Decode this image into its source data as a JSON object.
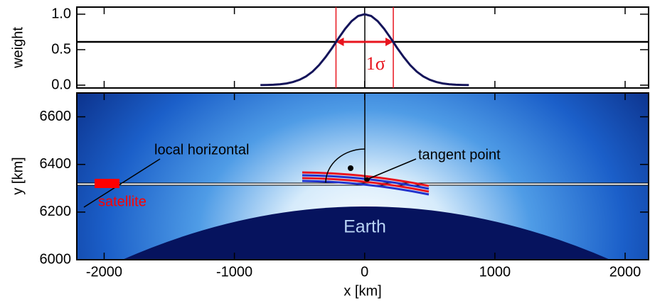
{
  "chart_data": [
    {
      "type": "line",
      "ylabel": "weight",
      "color": "#14145a",
      "x": [
        -800,
        -750,
        -700,
        -650,
        -600,
        -550,
        -500,
        -450,
        -400,
        -350,
        -300,
        -250,
        -200,
        -150,
        -100,
        -50,
        0,
        50,
        100,
        150,
        200,
        250,
        300,
        350,
        400,
        450,
        500,
        550,
        600,
        650,
        700,
        750,
        800
      ],
      "values": [
        0.001,
        0.003,
        0.006,
        0.013,
        0.024,
        0.044,
        0.076,
        0.123,
        0.191,
        0.282,
        0.395,
        0.524,
        0.662,
        0.793,
        0.902,
        0.975,
        1,
        0.975,
        0.902,
        0.793,
        0.662,
        0.524,
        0.395,
        0.282,
        0.191,
        0.123,
        0.076,
        0.044,
        0.024,
        0.013,
        0.006,
        0.003,
        0.001
      ],
      "hline": 0.61,
      "sigma": 220,
      "sigma_color": "#e8141e",
      "annotation": "1σ",
      "xlim": [
        -2210,
        2180
      ],
      "xticks": [
        -2000,
        -1000,
        0,
        1000,
        2000
      ],
      "ylim": [
        -0.04,
        1.1
      ],
      "yticks": [
        {
          "value": 0,
          "label": "0.0"
        },
        {
          "value": 0.5,
          "label": "0.5"
        },
        {
          "value": 1,
          "label": "1.0"
        }
      ]
    },
    {
      "type": "scene",
      "xlabel": "x [km]",
      "ylabel": "y [km]",
      "xlim": [
        -2210,
        2180
      ],
      "xticks": [
        -2000,
        -1000,
        0,
        1000,
        2000
      ],
      "ylim": [
        6000,
        6700
      ],
      "yticks": [
        6000,
        6200,
        6400,
        6600
      ],
      "annotations": {
        "horizontal": "local horizontal",
        "tangent": "tangent point",
        "satellite": "satellite",
        "earth": "Earth"
      }
    }
  ]
}
